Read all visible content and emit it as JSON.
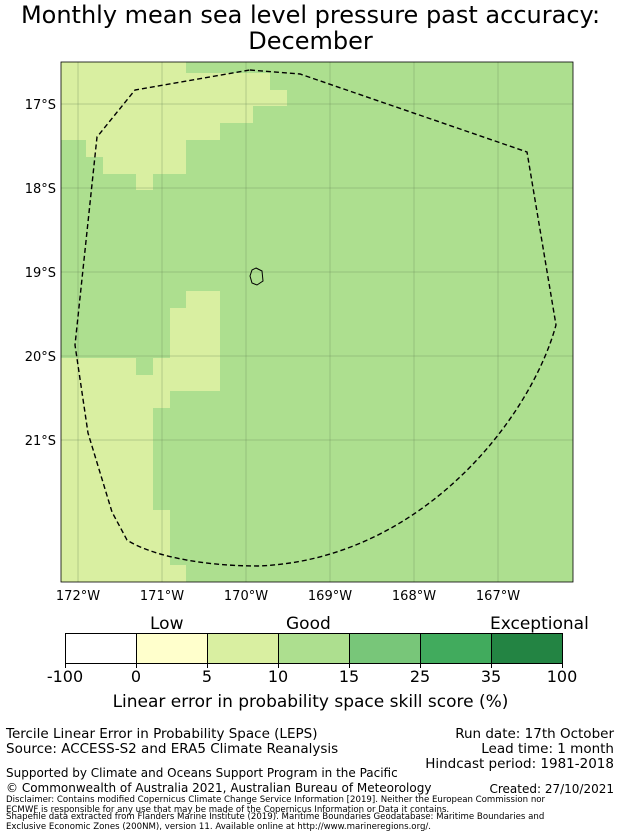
{
  "title_line1": "Monthly mean sea level pressure past accuracy:",
  "title_line2": "December",
  "map": {
    "lat_labels": [
      "17°S",
      "18°S",
      "19°S",
      "20°S",
      "21°S"
    ],
    "lon_labels": [
      "172°W",
      "171°W",
      "170°W",
      "169°W",
      "168°W",
      "167°W"
    ],
    "colors": {
      "good": "#addf8f",
      "moderate": "#d9efa1"
    }
  },
  "colorbar": {
    "ticks": [
      "-100",
      "0",
      "5",
      "10",
      "15",
      "25",
      "35",
      "100"
    ],
    "colors": [
      "#ffffff",
      "#ffffcc",
      "#d9efa1",
      "#addf8f",
      "#78c679",
      "#41ab5d",
      "#238443"
    ],
    "categories": {
      "low": "Low",
      "good": "Good",
      "exceptional": "Exceptional"
    },
    "title": "Linear error in probability space skill score (%)"
  },
  "info": {
    "method": "Tercile Linear Error in Probability Space (LEPS)",
    "source": "Source: ACCESS-S2 and ERA5 Climate Reanalysis",
    "run_date": "Run date: 17th October",
    "lead_time": "Lead time: 1 month",
    "hindcast": "Hindcast period: 1981-2018",
    "supported": "Supported by Climate and Oceans Support Program in the Pacific",
    "copyright": "© Commonwealth of Australia 2021, Australian Bureau of Meteorology",
    "created": "Created: 27/10/2021",
    "disclaimer1": "Disclaimer: Contains modified Copernicus Climate Change Service Information [2019]. Neither the European Commission nor",
    "disclaimer2": "ECMWF is responsible for any use that may be made of the Copernicus Information or Data it contains.",
    "disclaimer3": "Shapefile data extracted from Flanders Marine Institute (2019). Maritime Boundaries Geodatabase: Maritime Boundaries and",
    "disclaimer4": "Exclusive Economic Zones (200NM), version 11. Available online at http://www.marineregions.org/."
  }
}
